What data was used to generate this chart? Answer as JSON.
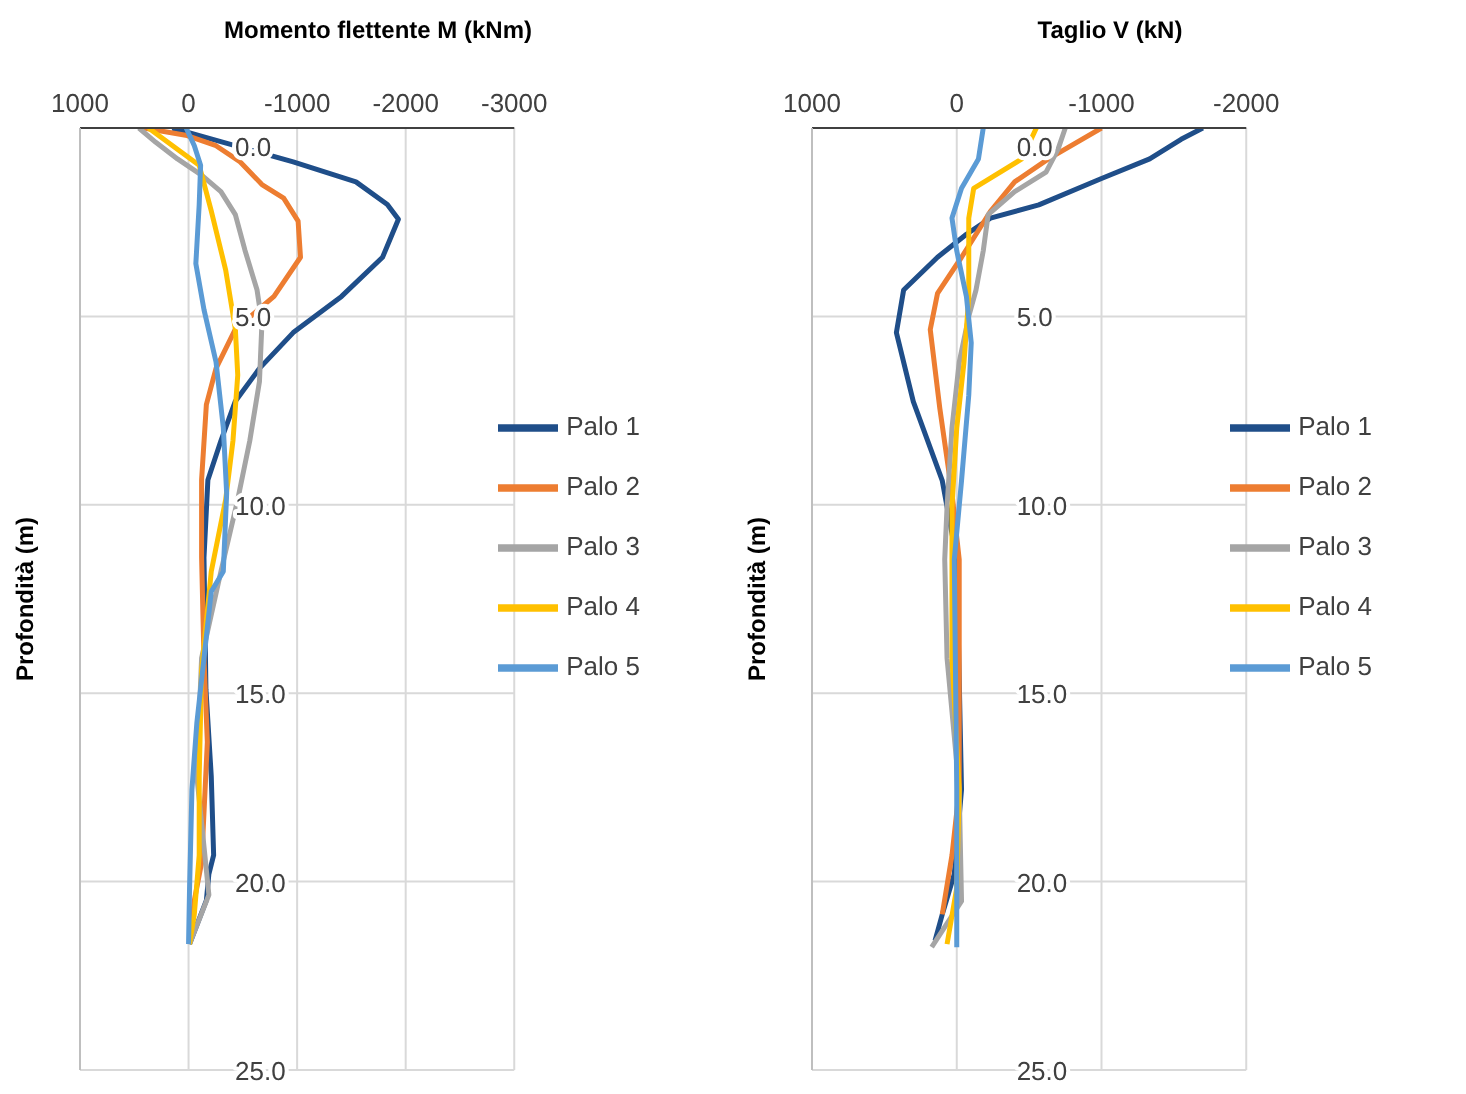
{
  "chart_data": [
    {
      "type": "line",
      "title": "Momento flettente M (kNm)",
      "ylabel": "Profondità (m)",
      "xlim": [
        1000,
        -3000
      ],
      "xticks": [
        1000,
        0,
        -1000,
        -2000,
        -3000
      ],
      "ylim": [
        25,
        0
      ],
      "yticks": [
        {
          "value": 0,
          "label": "0.0"
        },
        {
          "value": 5,
          "label": "5.0"
        },
        {
          "value": 10,
          "label": "10.0"
        },
        {
          "value": 15,
          "label": "15.0"
        },
        {
          "value": 20,
          "label": "20.0"
        },
        {
          "value": 25,
          "label": "25.0"
        }
      ],
      "grid": true,
      "legend": "right",
      "series": [
        {
          "name": "Palo 1",
          "color": "#1f4e89",
          "x": [
            150,
            -964,
            -1542,
            -1831,
            -1933,
            -1787,
            -1409,
            -964,
            -653,
            -431,
            -298,
            -178,
            -142,
            -160,
            -209,
            -231,
            -187,
            -164,
            -9
          ],
          "values": [
            0,
            0.9,
            1.43,
            2.03,
            2.42,
            3.43,
            4.47,
            5.43,
            6.38,
            7.25,
            8.3,
            9.34,
            11.4,
            14.9,
            17.2,
            19.3,
            19.8,
            20.5,
            21.66
          ]
        },
        {
          "name": "Palo 2",
          "color": "#ed7d31",
          "x": [
            413,
            13,
            -253,
            -476,
            -676,
            -876,
            -1009,
            -1031,
            -787,
            -431,
            -253,
            -164,
            -120,
            -120,
            -142,
            -173,
            -120,
            -53,
            -9
          ],
          "values": [
            0,
            0.2,
            0.47,
            0.9,
            1.5,
            1.86,
            2.47,
            3.43,
            4.47,
            5.34,
            6.38,
            7.34,
            9.34,
            11.4,
            14.07,
            16.3,
            19.5,
            20.5,
            21.6
          ]
        },
        {
          "name": "Palo 3",
          "color": "#a5a5a5",
          "x": [
            458,
            302,
            102,
            -120,
            -298,
            -431,
            -520,
            -631,
            -676,
            -653,
            -564,
            -453,
            -298,
            -120,
            -76,
            -187,
            -9
          ],
          "values": [
            0,
            0.38,
            0.82,
            1.25,
            1.69,
            2.3,
            3.25,
            4.3,
            5.17,
            6.73,
            8.3,
            9.86,
            11.77,
            14.07,
            17.2,
            20.35,
            21.66
          ]
        },
        {
          "name": "Palo 4",
          "color": "#ffc000",
          "x": [
            369,
            147,
            -98,
            -209,
            -342,
            -431,
            -453,
            -409,
            -342,
            -209,
            -120,
            -98,
            -98,
            -53,
            -9
          ],
          "values": [
            0,
            0.47,
            0.99,
            2.2,
            3.77,
            5.34,
            6.56,
            8.3,
            9.86,
            11.77,
            14.4,
            17.2,
            19.3,
            20.87,
            21.66
          ]
        },
        {
          "name": "Palo 5",
          "color": "#5b9bd5",
          "x": [
            22,
            -53,
            -111,
            -98,
            -67,
            -142,
            -253,
            -320,
            -351,
            -320,
            -209,
            -142,
            -76,
            -31,
            -9,
            0
          ],
          "values": [
            0,
            0.47,
            0.99,
            2.03,
            3.6,
            4.82,
            6.21,
            7.95,
            9.69,
            11.77,
            12.3,
            14.07,
            15.8,
            17.56,
            20.2,
            21.66
          ]
        }
      ]
    },
    {
      "type": "line",
      "title": "Taglio V (kN)",
      "ylabel": "Profondità (m)",
      "xlim": [
        1000,
        -2000
      ],
      "xticks": [
        1000,
        0,
        -1000,
        -2000
      ],
      "ylim": [
        25,
        0
      ],
      "yticks": [
        {
          "value": 0,
          "label": "0.0"
        },
        {
          "value": 5,
          "label": "5.0"
        },
        {
          "value": 10,
          "label": "10.0"
        },
        {
          "value": 15,
          "label": "15.0"
        },
        {
          "value": 20,
          "label": "20.0"
        },
        {
          "value": 25,
          "label": "25.0"
        }
      ],
      "grid": true,
      "legend": "right",
      "series": [
        {
          "name": "Palo 1",
          "color": "#1f4e89",
          "x": [
            -1700,
            -1550,
            -1333,
            -1000,
            -567,
            -233,
            -67,
            133,
            367,
            417,
            300,
            100,
            67,
            0,
            -33,
            17,
            100,
            150
          ],
          "values": [
            0,
            0.3,
            0.82,
            1.34,
            2.04,
            2.39,
            2.82,
            3.43,
            4.3,
            5.43,
            7.26,
            9.36,
            10.05,
            11.45,
            17.56,
            19.8,
            20.87,
            21.57
          ]
        },
        {
          "name": "Palo 2",
          "color": "#ed7d31",
          "x": [
            -1000,
            -633,
            -400,
            -233,
            -33,
            133,
            183,
            117,
            33,
            -17,
            -17,
            33,
            100
          ],
          "values": [
            0,
            0.82,
            1.43,
            2.21,
            3.43,
            4.39,
            5.35,
            7.44,
            9.7,
            11.45,
            17.56,
            19.3,
            20.87
          ]
        },
        {
          "name": "Palo 3",
          "color": "#a5a5a5",
          "x": [
            -750,
            -700,
            -617,
            -400,
            -217,
            -183,
            -133,
            -83,
            -17,
            33,
            67,
            83,
            67,
            -17,
            -33,
            173
          ],
          "values": [
            0,
            0.56,
            1.17,
            1.69,
            2.3,
            3.26,
            4.3,
            5.0,
            6.22,
            7.96,
            10.05,
            11.45,
            14.07,
            17.56,
            20.52,
            21.74
          ]
        },
        {
          "name": "Palo 4",
          "color": "#ffc000",
          "x": [
            -550,
            -450,
            -117,
            -83,
            -83,
            -50,
            0,
            33,
            33,
            -17,
            0,
            67
          ],
          "values": [
            0,
            0.82,
            1.6,
            2.39,
            4.48,
            6.22,
            7.96,
            10.05,
            14.07,
            17.56,
            20.17,
            21.66
          ]
        },
        {
          "name": "Palo 5",
          "color": "#5b9bd5",
          "x": [
            -183,
            -150,
            -33,
            33,
            0,
            -67,
            -100,
            -83,
            -33,
            17,
            0,
            0
          ],
          "values": [
            0,
            0.82,
            1.6,
            2.39,
            3.26,
            4.48,
            5.7,
            7.09,
            9.36,
            11.45,
            17.56,
            21.74
          ]
        }
      ]
    }
  ]
}
